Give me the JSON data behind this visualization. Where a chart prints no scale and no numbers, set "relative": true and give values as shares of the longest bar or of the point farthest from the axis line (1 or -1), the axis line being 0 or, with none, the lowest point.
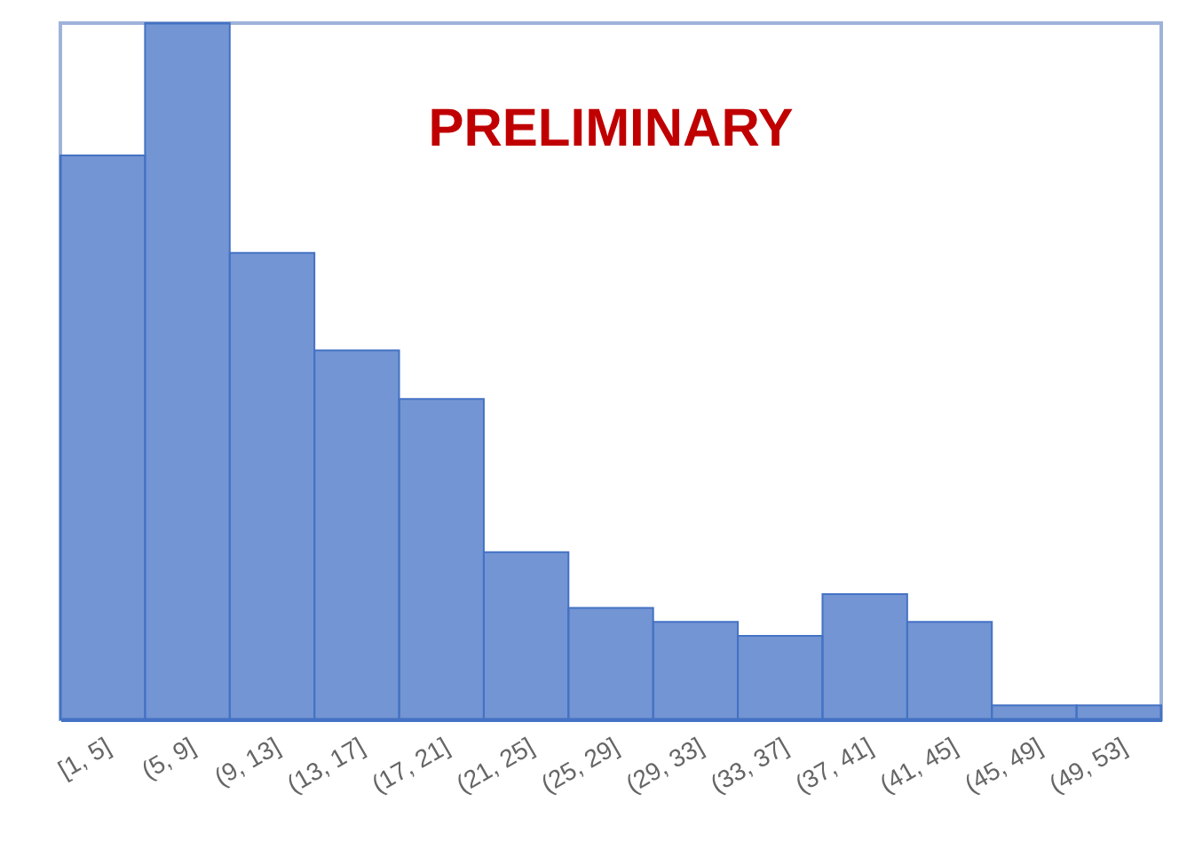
{
  "chart_data": {
    "type": "bar",
    "relative": true,
    "categories": [
      "[1, 5]",
      "(5, 9]",
      "(9, 13]",
      "(13, 17]",
      "(17, 21]",
      "(21, 25]",
      "(25, 29]",
      "(29, 33]",
      "(33, 37]",
      "(37, 41]",
      "(41, 45]",
      "(45, 49]",
      "(49, 53]"
    ],
    "values": [
      0.81,
      1,
      0.67,
      0.53,
      0.46,
      0.24,
      0.16,
      0.14,
      0.12,
      0.18,
      0.14,
      0.02,
      0.02
    ],
    "color": "#4472c4",
    "annotations": [
      "PRELIMINARY"
    ]
  }
}
